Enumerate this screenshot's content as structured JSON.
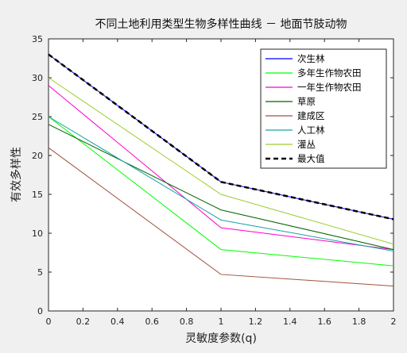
{
  "chart_data": {
    "type": "line",
    "title": "不同土地利用类型生物多样性曲线 － 地面节肢动物",
    "xlabel": "灵敏度参数(q)",
    "ylabel": "有效多样性",
    "xlim": [
      0,
      2
    ],
    "ylim": [
      0,
      35
    ],
    "xticks": [
      0,
      0.2,
      0.4,
      0.6,
      0.8,
      1,
      1.2,
      1.4,
      1.6,
      1.8,
      2
    ],
    "xtick_labels": [
      "0",
      "0.2",
      "0.4",
      "0.6",
      "0.8",
      "1",
      "1.2",
      "1.4",
      "1.6",
      "1.8",
      "2"
    ],
    "yticks": [
      0,
      5,
      10,
      15,
      20,
      25,
      30,
      35
    ],
    "ytick_labels": [
      "0",
      "5",
      "10",
      "15",
      "20",
      "25",
      "30",
      "35"
    ],
    "grid": false,
    "legend_position": "top-right",
    "x": [
      0,
      1,
      2
    ],
    "series": [
      {
        "name": "次生林",
        "color": "#0000ff",
        "dash": "solid",
        "values": [
          33.0,
          16.6,
          11.8
        ]
      },
      {
        "name": "多年生作物农田",
        "color": "#00ff00",
        "dash": "solid",
        "values": [
          25.0,
          7.9,
          5.8
        ]
      },
      {
        "name": "一年生作物农田",
        "color": "#ff00cc",
        "dash": "solid",
        "values": [
          29.0,
          10.7,
          7.9
        ]
      },
      {
        "name": "草原",
        "color": "#006400",
        "dash": "solid",
        "values": [
          24.0,
          13.0,
          7.9
        ]
      },
      {
        "name": "建成区",
        "color": "#a0523c",
        "dash": "solid",
        "values": [
          21.0,
          4.7,
          3.2
        ]
      },
      {
        "name": "人工林",
        "color": "#1aa3a3",
        "dash": "solid",
        "values": [
          25.0,
          11.7,
          7.7
        ]
      },
      {
        "name": "灌丛",
        "color": "#9acd32",
        "dash": "solid",
        "values": [
          30.0,
          15.0,
          8.6
        ]
      },
      {
        "name": "最大值",
        "color": "#000000",
        "dash": "dashed",
        "values": [
          33.0,
          16.6,
          11.8
        ]
      }
    ]
  }
}
